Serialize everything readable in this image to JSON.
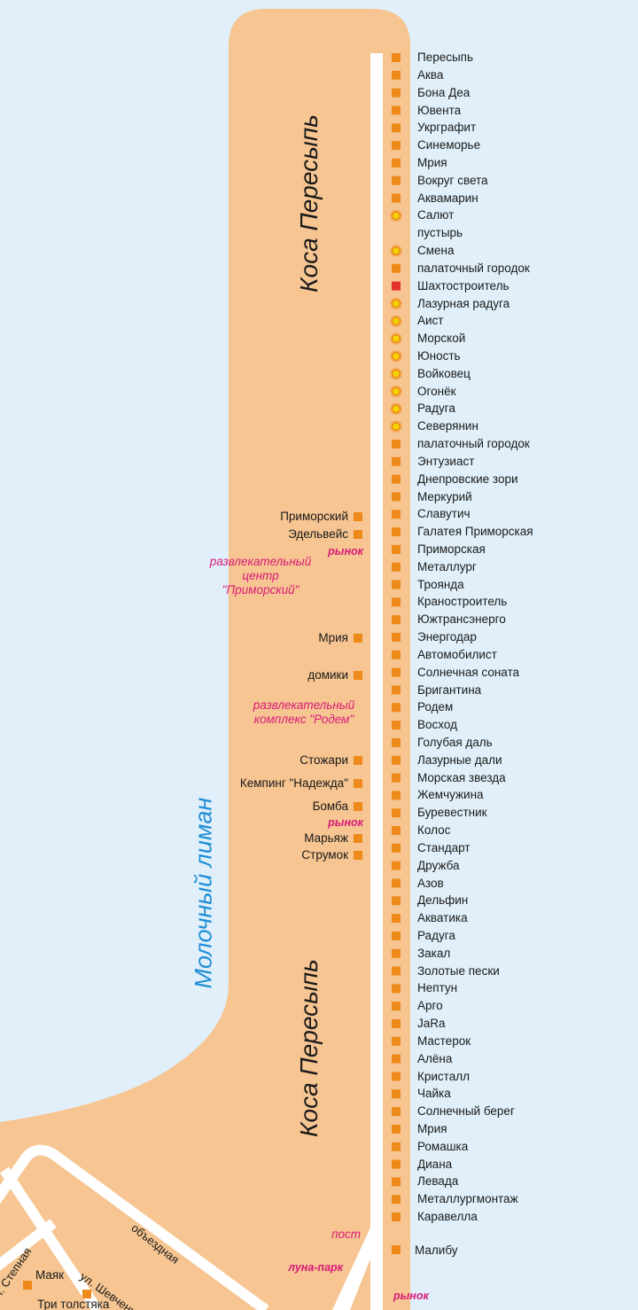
{
  "map": {
    "spit_label_top": "Коса Пересыпь",
    "spit_label_bottom": "Коса Пересыпь",
    "lake_label": "Молочный лиман",
    "colors": {
      "sea": "#e0eff9",
      "land": "#f6c591",
      "road": "#ffffff",
      "marker": "#ee8a1a",
      "marker_special": "#e2302a",
      "marker_star": "#f2d200",
      "pink_text": "#d81b7a",
      "lake_text": "#1e8ed6"
    },
    "legend_icons": {
      "square": "orange-square-marker-icon",
      "red_square": "red-square-marker-icon",
      "star": "sun-star-marker-icon"
    },
    "right_list": [
      {
        "name": "Пересыпь",
        "marker": "square"
      },
      {
        "name": "Аква",
        "marker": "square"
      },
      {
        "name": "Бона Деа",
        "marker": "square"
      },
      {
        "name": "Ювента",
        "marker": "square"
      },
      {
        "name": "Укрграфит",
        "marker": "square"
      },
      {
        "name": "Синеморье",
        "marker": "square"
      },
      {
        "name": "Мрия",
        "marker": "square"
      },
      {
        "name": "Вокруг света",
        "marker": "square"
      },
      {
        "name": "Аквамарин",
        "marker": "square"
      },
      {
        "name": "Салют",
        "marker": "star"
      },
      {
        "name": "пустырь",
        "marker": "none"
      },
      {
        "name": "Смена",
        "marker": "star"
      },
      {
        "name": "палаточный городок",
        "marker": "square"
      },
      {
        "name": "Шахтостроитель",
        "marker": "red"
      },
      {
        "name": "Лазурная радуга",
        "marker": "star"
      },
      {
        "name": "Аист",
        "marker": "star"
      },
      {
        "name": "Морской",
        "marker": "star"
      },
      {
        "name": "Юность",
        "marker": "star"
      },
      {
        "name": "Войковец",
        "marker": "star"
      },
      {
        "name": "Огонёк",
        "marker": "star"
      },
      {
        "name": "Радуга",
        "marker": "star"
      },
      {
        "name": "Северянин",
        "marker": "star"
      },
      {
        "name": "палаточный городок",
        "marker": "square"
      },
      {
        "name": "Энтузиаст",
        "marker": "square"
      },
      {
        "name": "Днепровские зори",
        "marker": "square"
      },
      {
        "name": "Меркурий",
        "marker": "square"
      },
      {
        "name": "Славутич",
        "marker": "square"
      },
      {
        "name": "Галатея Приморская",
        "marker": "square"
      },
      {
        "name": "Приморская",
        "marker": "square"
      },
      {
        "name": "Металлург",
        "marker": "square"
      },
      {
        "name": "Троянда",
        "marker": "square"
      },
      {
        "name": "Краностроитель",
        "marker": "square"
      },
      {
        "name": "Южтрансэнерго",
        "marker": "square"
      },
      {
        "name": "Энергодар",
        "marker": "square"
      },
      {
        "name": "Автомобилист",
        "marker": "square"
      },
      {
        "name": "Солнечная соната",
        "marker": "square"
      },
      {
        "name": "Бригантина",
        "marker": "square"
      },
      {
        "name": "Родем",
        "marker": "square"
      },
      {
        "name": "Восход",
        "marker": "square"
      },
      {
        "name": "Голубая даль",
        "marker": "square"
      },
      {
        "name": "Лазурные дали",
        "marker": "square"
      },
      {
        "name": "Морская звезда",
        "marker": "square"
      },
      {
        "name": "Жемчужина",
        "marker": "square"
      },
      {
        "name": "Буревестник",
        "marker": "square"
      },
      {
        "name": "Колос",
        "marker": "square"
      },
      {
        "name": "Стандарт",
        "marker": "square"
      },
      {
        "name": "Дружба",
        "marker": "square"
      },
      {
        "name": "Азов",
        "marker": "square"
      },
      {
        "name": "Дельфин",
        "marker": "square"
      },
      {
        "name": "Акватика",
        "marker": "square"
      },
      {
        "name": "Радуга",
        "marker": "square"
      },
      {
        "name": "Закал",
        "marker": "square"
      },
      {
        "name": "Золотые пески",
        "marker": "square"
      },
      {
        "name": "Нептун",
        "marker": "square"
      },
      {
        "name": "Арго",
        "marker": "square"
      },
      {
        "name": "JaRa",
        "marker": "square"
      },
      {
        "name": "Мастерок",
        "marker": "square"
      },
      {
        "name": "Алёна",
        "marker": "square"
      },
      {
        "name": "Кристалл",
        "marker": "square"
      },
      {
        "name": "Чайка",
        "marker": "square"
      },
      {
        "name": "Солнечный берег",
        "marker": "square"
      },
      {
        "name": "Мрия",
        "marker": "square"
      },
      {
        "name": "Ромашка",
        "marker": "square"
      },
      {
        "name": "Диана",
        "marker": "square"
      },
      {
        "name": "Левада",
        "marker": "square"
      },
      {
        "name": "Металлургмонтаж",
        "marker": "square"
      },
      {
        "name": "Каравелла",
        "marker": "square"
      }
    ],
    "malibu": "Малибу",
    "left_places": [
      "Приморский",
      "Эдельвейс",
      "Мрия",
      "домики",
      "Стожари",
      "Кемпинг \"Надежда\"",
      "Бомба",
      "Марьяж",
      "Струмок"
    ],
    "markets": [
      "рынок",
      "рынок",
      "рынок"
    ],
    "ent_center": [
      "развлекательный",
      "центр",
      "\"Приморский\""
    ],
    "ent_complex": [
      "развлекательный",
      "комплекс \"Родем\""
    ],
    "post": "пост",
    "luna_park": "луна-парк",
    "town": {
      "bypass_road": "объездная",
      "street_stepnaya": "ул. Степная",
      "street_shevchenko": "ул. Шевченко",
      "mayak": "Маяк",
      "tri_tolstyaka": "Три толстяка"
    }
  }
}
